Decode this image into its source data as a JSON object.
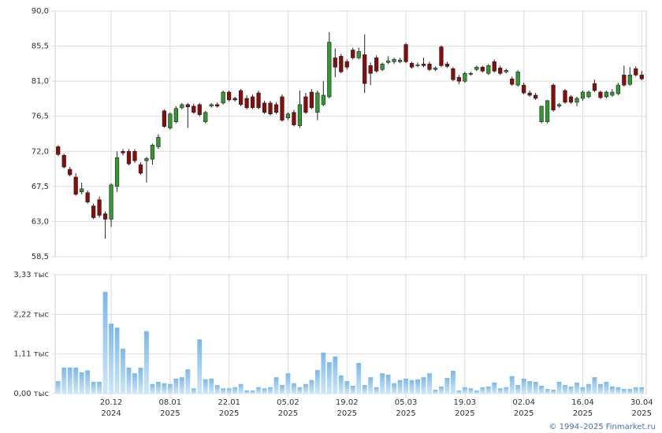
{
  "chart_data": [
    {
      "type": "candlestick",
      "open": [
        72.6,
        71.5,
        69.7,
        68.7,
        66.8,
        66.7,
        65.0,
        65.8,
        64.0,
        63.3,
        67.5,
        72.0,
        72.0,
        72.0,
        70.3,
        70.8,
        71.0,
        72.6,
        77.2,
        75.0,
        75.8,
        77.6,
        78.0,
        77.8,
        78.0,
        75.8,
        77.8,
        78.0,
        78.2,
        79.6,
        78.8,
        79.8,
        78.8,
        79.0,
        79.5,
        78.2,
        78.2,
        78.0,
        79.0,
        76.3,
        77.0,
        75.3,
        79.0,
        79.6,
        77.0,
        78.0,
        79.0,
        84.0,
        84.2,
        83.5,
        85.0,
        84.0,
        84.4,
        83.0,
        84.0,
        82.5,
        83.4,
        83.5,
        83.5,
        85.7,
        83.3,
        83.0,
        83.2,
        83.2,
        82.5,
        85.4,
        83.2,
        82.6,
        81.5,
        81.0,
        82.0,
        82.5,
        82.8,
        82.0,
        83.5,
        82.7,
        82.2,
        81.3,
        80.5,
        80.5,
        79.5,
        79.2,
        75.8,
        75.8,
        80.5,
        77.8,
        79.8,
        79.0,
        78.3,
        78.8,
        79.0,
        80.7,
        79.6,
        79.0,
        79.2,
        79.4,
        81.8,
        80.6,
        82.6,
        81.8
      ],
      "high": [
        72.8,
        71.7,
        70.0,
        69.2,
        68.0,
        67.0,
        65.3,
        66.2,
        64.3,
        67.9,
        72.0,
        72.3,
        72.3,
        72.3,
        70.6,
        71.3,
        73.0,
        74.2,
        77.4,
        77.0,
        77.8,
        78.2,
        78.2,
        78.1,
        78.2,
        77.2,
        78.2,
        78.3,
        79.8,
        79.8,
        79.0,
        80.0,
        79.2,
        79.3,
        79.8,
        78.5,
        78.5,
        78.3,
        79.3,
        77.0,
        77.3,
        79.8,
        79.5,
        80.0,
        79.8,
        81.0,
        87.3,
        85.2,
        84.5,
        83.8,
        85.3,
        85.3,
        87.0,
        83.4,
        84.3,
        83.4,
        84.2,
        84.0,
        84.0,
        85.9,
        83.5,
        83.4,
        84.0,
        83.5,
        82.9,
        85.6,
        83.5,
        82.8,
        81.8,
        82.2,
        82.2,
        83.0,
        83.0,
        83.2,
        83.8,
        83.0,
        82.6,
        81.6,
        82.4,
        80.8,
        79.8,
        79.5,
        77.8,
        78.6,
        80.7,
        78.2,
        80.0,
        79.2,
        79.0,
        79.8,
        79.8,
        81.2,
        79.8,
        79.8,
        80.0,
        80.8,
        83.0,
        82.8,
        82.9,
        82.3
      ],
      "low": [
        71.4,
        69.8,
        68.8,
        66.3,
        66.5,
        65.3,
        63.3,
        63.5,
        60.8,
        62.3,
        66.8,
        71.5,
        70.2,
        70.5,
        69.0,
        68.0,
        70.3,
        72.3,
        75.0,
        74.8,
        75.6,
        77.4,
        75.0,
        76.8,
        76.5,
        75.6,
        77.6,
        77.6,
        78.0,
        78.4,
        78.4,
        77.8,
        77.4,
        77.4,
        77.4,
        76.8,
        76.6,
        76.8,
        75.8,
        76.0,
        75.2,
        75.0,
        76.8,
        77.4,
        76.0,
        77.8,
        78.8,
        81.5,
        82.0,
        82.5,
        83.8,
        83.8,
        79.5,
        80.5,
        82.1,
        82.3,
        83.2,
        83.2,
        83.3,
        83.3,
        82.6,
        82.8,
        82.8,
        82.3,
        82.3,
        82.8,
        82.7,
        81.0,
        80.6,
        80.8,
        81.7,
        82.3,
        82.1,
        81.8,
        82.1,
        81.8,
        82.0,
        80.4,
        80.3,
        79.3,
        79.0,
        78.6,
        75.6,
        75.6,
        77.1,
        77.6,
        78.1,
        78.1,
        77.8,
        78.5,
        78.8,
        79.6,
        78.7,
        78.8,
        79.0,
        79.2,
        80.3,
        80.4,
        81.6,
        81.1
      ],
      "close": [
        71.6,
        70.0,
        69.0,
        66.5,
        67.2,
        65.5,
        63.5,
        63.8,
        63.3,
        67.7,
        71.2,
        71.8,
        70.4,
        70.8,
        69.2,
        71.1,
        72.8,
        73.8,
        75.2,
        76.8,
        77.5,
        78.0,
        77.7,
        77.0,
        76.7,
        77.0,
        78.0,
        77.8,
        79.6,
        78.6,
        78.6,
        78.0,
        77.6,
        77.6,
        77.6,
        77.0,
        76.8,
        77.0,
        76.0,
        76.8,
        75.4,
        78.0,
        77.0,
        77.6,
        79.5,
        79.2,
        86.0,
        82.8,
        82.2,
        82.8,
        84.0,
        84.8,
        80.7,
        82.0,
        82.3,
        83.2,
        83.6,
        83.8,
        83.7,
        83.5,
        82.8,
        83.1,
        83.0,
        82.5,
        82.7,
        83.0,
        82.9,
        81.2,
        81.0,
        82.0,
        81.9,
        82.8,
        82.3,
        83.0,
        82.3,
        82.0,
        82.4,
        80.6,
        82.2,
        79.5,
        79.2,
        78.8,
        77.8,
        78.5,
        77.3,
        78.0,
        78.3,
        78.3,
        78.8,
        79.6,
        79.6,
        79.8,
        78.9,
        79.6,
        79.6,
        80.5,
        80.5,
        81.8,
        81.8,
        81.3
      ],
      "up_color": "#2f9b2f",
      "down_color": "#8b0a0a",
      "ylim": [
        58.5,
        90.0
      ],
      "yticks": [
        {
          "value": 58.5,
          "label": "58,5"
        },
        {
          "value": 63.0,
          "label": "63,0"
        },
        {
          "value": 67.5,
          "label": "67,5"
        },
        {
          "value": 72.0,
          "label": "72,0"
        },
        {
          "value": 76.5,
          "label": "76,5"
        },
        {
          "value": 81.0,
          "label": "81,0"
        },
        {
          "value": 85.5,
          "label": "85,5"
        },
        {
          "value": 90.0,
          "label": "90,0"
        }
      ],
      "grid": true
    },
    {
      "type": "bar",
      "categories": [
        null,
        null,
        null,
        null,
        null,
        null,
        null,
        null,
        null,
        "20.12\n2024",
        null,
        null,
        null,
        null,
        null,
        null,
        null,
        null,
        null,
        "08.01\n2025",
        null,
        null,
        null,
        null,
        null,
        null,
        null,
        null,
        null,
        "22.01\n2025",
        null,
        null,
        null,
        null,
        null,
        null,
        null,
        null,
        null,
        "05.02\n2025",
        null,
        null,
        null,
        null,
        null,
        null,
        null,
        null,
        null,
        "19.02\n2025",
        null,
        null,
        null,
        null,
        null,
        null,
        null,
        null,
        null,
        "05.03\n2025",
        null,
        null,
        null,
        null,
        null,
        null,
        null,
        null,
        null,
        "19.03\n2025",
        null,
        null,
        null,
        null,
        null,
        null,
        null,
        null,
        null,
        "02.04\n2025",
        null,
        null,
        null,
        null,
        null,
        null,
        null,
        null,
        null,
        "16.04\n2025",
        null,
        null,
        null,
        null,
        null,
        null,
        null,
        null,
        null,
        "30.04\n2025"
      ],
      "values": [
        0.35,
        0.73,
        0.73,
        0.73,
        0.6,
        0.65,
        0.33,
        0.33,
        2.85,
        1.96,
        1.85,
        1.26,
        0.73,
        0.57,
        0.73,
        1.75,
        0.27,
        0.33,
        0.29,
        0.27,
        0.42,
        0.46,
        0.68,
        0.15,
        1.52,
        0.4,
        0.42,
        0.24,
        0.15,
        0.15,
        0.18,
        0.27,
        0.09,
        0.09,
        0.18,
        0.15,
        0.18,
        0.46,
        0.24,
        0.57,
        0.29,
        0.18,
        0.27,
        0.38,
        0.66,
        1.15,
        0.88,
        1.04,
        0.51,
        0.35,
        0.22,
        0.86,
        0.24,
        0.46,
        0.18,
        0.57,
        0.53,
        0.29,
        0.38,
        0.42,
        0.38,
        0.4,
        0.46,
        0.57,
        0.11,
        0.2,
        0.44,
        0.64,
        0.09,
        0.18,
        0.15,
        0.09,
        0.18,
        0.2,
        0.31,
        0.15,
        0.18,
        0.49,
        0.24,
        0.42,
        0.35,
        0.33,
        0.22,
        0.13,
        0.11,
        0.33,
        0.24,
        0.2,
        0.31,
        0.18,
        0.27,
        0.46,
        0.27,
        0.33,
        0.2,
        0.18,
        0.13,
        0.13,
        0.18,
        0.18
      ],
      "color": "#8cc4ef",
      "ylim": [
        0,
        3.33
      ],
      "yticks": [
        {
          "value": 0,
          "label": "0,00 тыс"
        },
        {
          "value": 1.11,
          "label": "1,11 тыс"
        },
        {
          "value": 2.22,
          "label": "2,22 тыс"
        },
        {
          "value": 3.33,
          "label": "3,33 тыс"
        }
      ],
      "grid": true
    }
  ],
  "footer": "© 1994–2025 Finmarket.ru"
}
